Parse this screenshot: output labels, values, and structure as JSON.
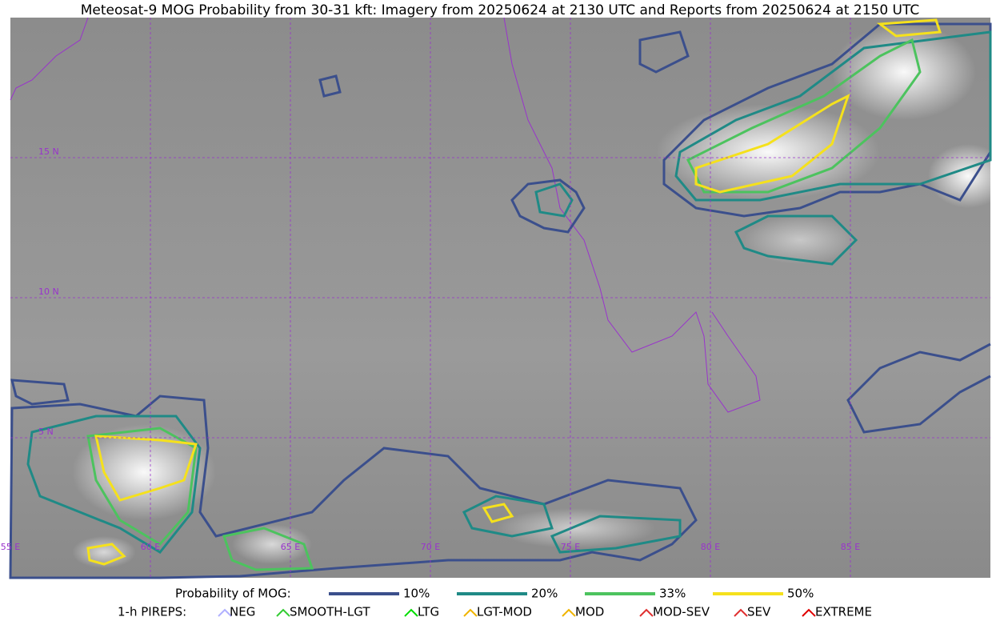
{
  "title": "Meteosat-9 MOG Probability from 30-31 kft: Imagery from 20250624 at 2130 UTC and Reports from 20250624 at 2150 UTC",
  "map": {
    "lat_labels": [
      "15 N",
      "10 N",
      "5 N"
    ],
    "lon_labels": [
      "55 E",
      "60 E",
      "65 E",
      "70 E",
      "75 E",
      "80 E",
      "85 E"
    ]
  },
  "legend": {
    "mog": {
      "title": "Probability of MOG:",
      "items": [
        {
          "label": "10%",
          "color": "#3b4f8c"
        },
        {
          "label": "20%",
          "color": "#1f8a86"
        },
        {
          "label": "33%",
          "color": "#4cc35e"
        },
        {
          "label": "50%",
          "color": "#f5e11c"
        }
      ]
    },
    "pireps": {
      "title": "1-h PIREPS:",
      "items": [
        {
          "label": "NEG",
          "color": "#b0b0ff"
        },
        {
          "label": "SMOOTH-LGT",
          "color": "#33cc33"
        },
        {
          "label": "LTG",
          "color": "#00dd00"
        },
        {
          "label": "LGT-MOD",
          "color": "#f0b400"
        },
        {
          "label": "MOD",
          "color": "#f0b400"
        },
        {
          "label": "MOD-SEV",
          "color": "#e03030"
        },
        {
          "label": "SEV",
          "color": "#e03030"
        },
        {
          "label": "EXTREME",
          "color": "#e00000"
        }
      ]
    }
  }
}
